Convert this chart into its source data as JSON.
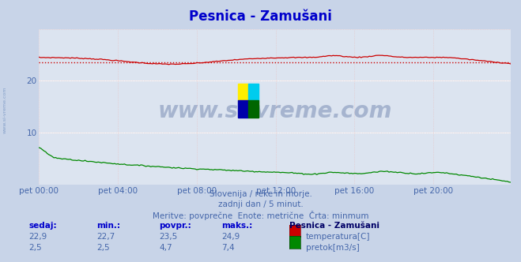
{
  "title": "Pesnica - Zamušani",
  "bg_color": "#c8d4e8",
  "plot_bg_color": "#dce4f0",
  "grid_color_white": "#ffffff",
  "grid_color_pink": "#e8c0c0",
  "title_color": "#0000cc",
  "title_fontsize": 12,
  "tick_color": "#4466aa",
  "n_points": 288,
  "temp_color": "#cc0000",
  "flow_color": "#008800",
  "avg_line_color": "#cc0000",
  "ymin": 0,
  "ymax": 30,
  "yticks": [
    10,
    20
  ],
  "xtick_labels": [
    "pet 00:00",
    "pet 04:00",
    "pet 08:00",
    "pet 12:00",
    "pet 16:00",
    "pet 20:00"
  ],
  "xtick_positions": [
    0,
    48,
    96,
    144,
    192,
    240
  ],
  "watermark": "www.si-vreme.com",
  "watermark_color": "#1a3a7a",
  "subtitle1": "Slovenija / reke in morje.",
  "subtitle2": "zadnji dan / 5 minut.",
  "subtitle3": "Meritve: povprečne  Enote: metrične  Črta: minmum",
  "subtitle_color": "#4466aa",
  "table_header_color": "#0000cc",
  "table_value_color": "#4466aa",
  "legend_title": "Pesnica - Zamušani",
  "legend_title_color": "#000066",
  "legend_label_color": "#4466aa",
  "temp_avg": 23.5,
  "left_label": "www.si-vreme.com",
  "left_label_color": "#6688bb"
}
